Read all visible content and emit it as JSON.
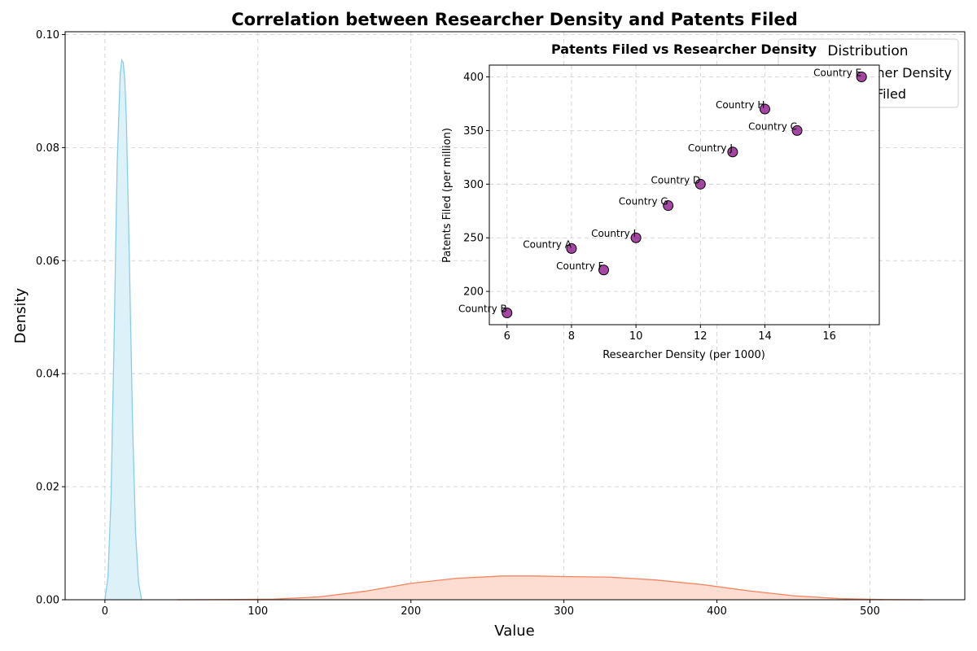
{
  "chart_data": [
    {
      "type": "area",
      "title": "Correlation between Researcher Density and Patents Filed",
      "xlabel": "Value",
      "ylabel": "Density",
      "xlim": [
        -26,
        562
      ],
      "ylim": [
        0,
        0.1005
      ],
      "xticks": [
        0,
        100,
        200,
        300,
        400,
        500
      ],
      "yticks": [
        0.0,
        0.02,
        0.04,
        0.06,
        0.08,
        0.1
      ],
      "ytick_labels": [
        "0.00",
        "0.02",
        "0.04",
        "0.06",
        "0.08",
        "0.10"
      ],
      "grid": true,
      "legend": {
        "placement": "top-right",
        "title": "Distribution",
        "entries": [
          "Researcher Density",
          "Patents Filed"
        ]
      },
      "series": [
        {
          "name": "Researcher Density",
          "color": "#87ceeb",
          "fill": "#ddf1f9",
          "x": [
            0,
            2,
            4,
            6,
            8,
            10,
            11,
            12,
            13,
            14,
            16,
            18,
            20,
            22,
            24
          ],
          "y": [
            0.0,
            0.004,
            0.018,
            0.046,
            0.077,
            0.093,
            0.0955,
            0.095,
            0.092,
            0.085,
            0.06,
            0.032,
            0.012,
            0.003,
            0.0
          ]
        },
        {
          "name": "Patents Filed",
          "color": "#f4845f",
          "fill": "#fddcd2",
          "x": [
            47,
            80,
            110,
            140,
            170,
            200,
            230,
            260,
            280,
            300,
            330,
            360,
            390,
            420,
            450,
            480,
            510,
            535
          ],
          "y": [
            0.0,
            3e-05,
            0.0001,
            0.0005,
            0.0015,
            0.0029,
            0.0038,
            0.0042,
            0.0042,
            0.0041,
            0.004,
            0.0035,
            0.0027,
            0.0016,
            0.0007,
            0.0002,
            3e-05,
            0.0
          ]
        }
      ]
    },
    {
      "type": "scatter",
      "title": "Patents Filed vs Researcher Density",
      "xlabel": "Researcher Density (per 1000)",
      "ylabel": "Patents Filed (per million)",
      "xlim": [
        5.45,
        17.55
      ],
      "ylim": [
        169,
        411
      ],
      "xticks": [
        6,
        8,
        10,
        12,
        14,
        16
      ],
      "yticks": [
        200,
        250,
        300,
        350,
        400
      ],
      "grid": true,
      "marker_color": "#800080",
      "points": [
        {
          "label": "Country A",
          "x": 8,
          "y": 240
        },
        {
          "label": "Country B",
          "x": 6,
          "y": 180
        },
        {
          "label": "Country C",
          "x": 15,
          "y": 350
        },
        {
          "label": "Country D",
          "x": 12,
          "y": 300
        },
        {
          "label": "Country E",
          "x": 17,
          "y": 400
        },
        {
          "label": "Country F",
          "x": 9,
          "y": 220
        },
        {
          "label": "Country G",
          "x": 11,
          "y": 280
        },
        {
          "label": "Country H",
          "x": 14,
          "y": 370
        },
        {
          "label": "Country I",
          "x": 10,
          "y": 250
        },
        {
          "label": "Country J",
          "x": 13,
          "y": 330
        }
      ]
    }
  ]
}
